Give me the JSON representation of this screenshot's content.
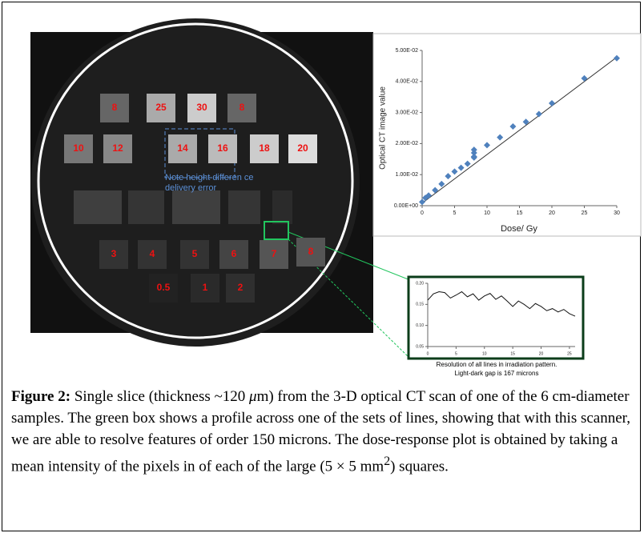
{
  "ct_image": {
    "squares": [
      "8",
      "25",
      "30",
      "8",
      "10",
      "12",
      "14",
      "16",
      "18",
      "20",
      "3",
      "4",
      "5",
      "6",
      "7",
      "8",
      "0.5",
      "1",
      "2"
    ],
    "annotation": [
      "Note height differen ce",
      "delivery error"
    ]
  },
  "dose_plot": {
    "type": "scatter",
    "x_label": "Dose/ Gy",
    "y_label": "Optical CT image value",
    "color": "#4f81bd",
    "x": [
      0,
      0.5,
      1,
      2,
      3,
      4,
      5,
      6,
      7,
      8,
      8,
      8,
      8,
      10,
      12,
      14,
      16,
      18,
      20,
      25,
      30
    ],
    "y": [
      0.0012,
      0.0025,
      0.0033,
      0.005,
      0.007,
      0.0095,
      0.011,
      0.0122,
      0.0135,
      0.0158,
      0.017,
      0.018,
      0.0155,
      0.0195,
      0.022,
      0.0255,
      0.027,
      0.0295,
      0.033,
      0.041,
      0.0475
    ],
    "fit_line": {
      "x": [
        0,
        30
      ],
      "y": [
        0.0008,
        0.0478
      ]
    },
    "xlim": [
      0,
      30
    ],
    "ylim": [
      0,
      0.05
    ],
    "xticks": [
      0,
      5,
      10,
      15,
      20,
      25,
      30
    ],
    "yticks": [
      {
        "value": 0,
        "label": "0.00E+00"
      },
      {
        "value": 0.01,
        "label": "1.00E-02"
      },
      {
        "value": 0.02,
        "label": "2.00E-02"
      },
      {
        "value": 0.03,
        "label": "3.00E-02"
      },
      {
        "value": 0.04,
        "label": "4.00E-02"
      },
      {
        "value": 0.05,
        "label": "5.00E-02"
      }
    ]
  },
  "profile_plot": {
    "type": "line",
    "x": [
      0,
      1,
      2,
      3,
      4,
      5,
      6,
      7,
      8,
      9,
      10,
      11,
      12,
      13,
      14,
      15,
      16,
      17,
      18,
      19,
      20,
      21,
      22,
      23,
      24,
      25,
      26
    ],
    "y": [
      0.16,
      0.175,
      0.18,
      0.178,
      0.165,
      0.172,
      0.18,
      0.168,
      0.175,
      0.16,
      0.17,
      0.176,
      0.162,
      0.17,
      0.158,
      0.145,
      0.158,
      0.15,
      0.14,
      0.152,
      0.145,
      0.135,
      0.14,
      0.132,
      0.138,
      0.128,
      0.122
    ],
    "xlim": [
      0,
      26
    ],
    "ylim": [
      0.05,
      0.2
    ],
    "xticks": [
      0,
      5,
      10,
      15,
      20,
      25
    ],
    "yticks": [
      {
        "value": 0.2,
        "label": "0.20"
      },
      {
        "value": 0.15,
        "label": "0.15"
      },
      {
        "value": 0.1,
        "label": "0.10"
      },
      {
        "value": 0.05,
        "label": "0.05"
      }
    ],
    "caption": [
      "Resolution of all lines in irradiation pattern.",
      "Light-dark gap is 167 microns"
    ]
  },
  "caption": {
    "label": "Figure 2:",
    "text_1": " Single slice (thickness ~120 ",
    "mu": "μ",
    "text_2": "m) from the 3-D optical CT scan of one of the 6 cm-diameter samples. The green box shows a profile across one of the sets of lines, showing that with this scanner, we are able to resolve features of order 150 microns. The dose-response plot is obtained by taking a mean intensity of the pixels in of each of the large (5 × 5 mm",
    "sup": "2",
    "text_3": ") squares."
  }
}
